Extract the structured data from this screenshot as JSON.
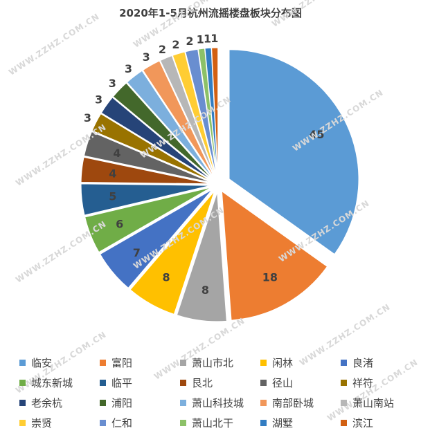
{
  "chart_data": {
    "type": "pie",
    "title": "2020年1-5月杭州流摇楼盘板块分布图",
    "legend_position": "bottom",
    "slices": [
      {
        "label": "临安",
        "value": 45,
        "color": "#5b9bd5"
      },
      {
        "label": "富阳",
        "value": 18,
        "color": "#ed7d31"
      },
      {
        "label": "萧山市北",
        "value": 8,
        "color": "#a5a5a5"
      },
      {
        "label": "闲林",
        "value": 8,
        "color": "#ffc000"
      },
      {
        "label": "良渚",
        "value": 7,
        "color": "#4472c4"
      },
      {
        "label": "城东新城",
        "value": 6,
        "color": "#70ad47"
      },
      {
        "label": "临平",
        "value": 5,
        "color": "#255e91"
      },
      {
        "label": "艮北",
        "value": 4,
        "color": "#9e480e"
      },
      {
        "label": "径山",
        "value": 4,
        "color": "#636363"
      },
      {
        "label": "祥符",
        "value": 3,
        "color": "#997300"
      },
      {
        "label": "老余杭",
        "value": 3,
        "color": "#264478"
      },
      {
        "label": "浦阳",
        "value": 3,
        "color": "#43682b"
      },
      {
        "label": "萧山科技城",
        "value": 3,
        "color": "#7cafdd"
      },
      {
        "label": "南部卧城",
        "value": 3,
        "color": "#f1975a"
      },
      {
        "label": "萧山南站",
        "value": 2,
        "color": "#b7b7b7"
      },
      {
        "label": "崇贤",
        "value": 2,
        "color": "#ffcd33"
      },
      {
        "label": "仁和",
        "value": 2,
        "color": "#698ed0"
      },
      {
        "label": "萧山北干",
        "value": 1,
        "color": "#8cc168"
      },
      {
        "label": "湖墅",
        "value": 1,
        "color": "#327dc2"
      },
      {
        "label": "滨江",
        "value": 1,
        "color": "#d26012"
      }
    ]
  },
  "watermark_text": "WWW.ZZHZ.COM.CN"
}
